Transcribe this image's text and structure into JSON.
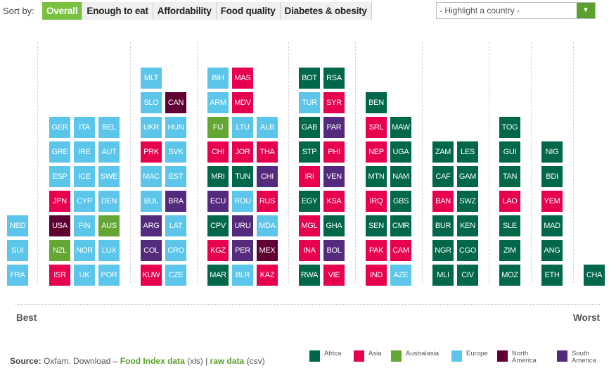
{
  "header": {
    "sort_label": "Sort by:",
    "tabs": [
      "Overall",
      "Enough to eat",
      "Affordability",
      "Food quality",
      "Diabetes & obesity"
    ],
    "active_tab": "Overall",
    "highlight_placeholder": "- Highlight a country -"
  },
  "colors": {
    "AF": "#00674a",
    "AS": "#e6004f",
    "AU": "#63a633",
    "EU": "#5bc6ea",
    "NA": "#600032",
    "SA": "#542a7c"
  },
  "chart_data": {
    "type": "table",
    "ordering": "bottom-to-top within column, groups from best to worst",
    "axis": {
      "left": "Best",
      "right": "Worst"
    },
    "groups": [
      [
        [
          [
            "FRA",
            "EU"
          ],
          [
            "SUI",
            "EU"
          ],
          [
            "NED",
            "EU"
          ]
        ]
      ],
      [
        [
          [
            "ISR",
            "AS"
          ],
          [
            "NZL",
            "AU"
          ],
          [
            "USA",
            "NA"
          ],
          [
            "JPN",
            "AS"
          ],
          [
            "ESP",
            "EU"
          ],
          [
            "GRE",
            "EU"
          ],
          [
            "GER",
            "EU"
          ]
        ],
        [
          [
            "UK",
            "EU"
          ],
          [
            "NOR",
            "EU"
          ],
          [
            "FIN",
            "EU"
          ],
          [
            "CYP",
            "EU"
          ],
          [
            "ICE",
            "EU"
          ],
          [
            "IRE",
            "EU"
          ],
          [
            "ITA",
            "EU"
          ]
        ],
        [
          [
            "POR",
            "EU"
          ],
          [
            "LUX",
            "EU"
          ],
          [
            "AUS",
            "AU"
          ],
          [
            "DEN",
            "EU"
          ],
          [
            "SWE",
            "EU"
          ],
          [
            "AUT",
            "EU"
          ],
          [
            "BEL",
            "EU"
          ]
        ]
      ],
      [
        [
          [
            "KUW",
            "AS"
          ],
          [
            "COL",
            "SA"
          ],
          [
            "ARG",
            "SA"
          ],
          [
            "BUL",
            "EU"
          ],
          [
            "MAC",
            "EU"
          ],
          [
            "PRK",
            "AS"
          ],
          [
            "UKR",
            "EU"
          ],
          [
            "SLO",
            "EU"
          ],
          [
            "MLT",
            "EU"
          ]
        ],
        [
          [
            "CZE",
            "EU"
          ],
          [
            "CRO",
            "EU"
          ],
          [
            "LAT",
            "EU"
          ],
          [
            "BRA",
            "SA"
          ],
          [
            "EST",
            "EU"
          ],
          [
            "SVK",
            "EU"
          ],
          [
            "HUN",
            "EU"
          ],
          [
            "CAN",
            "NA"
          ]
        ]
      ],
      [
        [
          [
            "MAR",
            "AF"
          ],
          [
            "KGZ",
            "AS"
          ],
          [
            "CPV",
            "AF"
          ],
          [
            "ECU",
            "SA"
          ],
          [
            "MRI",
            "AF"
          ],
          [
            "CHI",
            "AS"
          ],
          [
            "FIJ",
            "AU"
          ],
          [
            "ARM",
            "EU"
          ],
          [
            "BIH",
            "EU"
          ]
        ],
        [
          [
            "BLR",
            "EU"
          ],
          [
            "PER",
            "SA"
          ],
          [
            "URU",
            "SA"
          ],
          [
            "ROU",
            "EU"
          ],
          [
            "TUN",
            "AF"
          ],
          [
            "JOR",
            "AS"
          ],
          [
            "LTU",
            "EU"
          ],
          [
            "MDV",
            "AS"
          ],
          [
            "MAS",
            "AS"
          ]
        ],
        [
          [
            "KAZ",
            "AS"
          ],
          [
            "MEX",
            "NA"
          ],
          [
            "MDA",
            "EU"
          ],
          [
            "RUS",
            "AS"
          ],
          [
            "CHI",
            "SA"
          ],
          [
            "THA",
            "AS"
          ],
          [
            "ALB",
            "EU"
          ]
        ]
      ],
      [
        [
          [
            "RWA",
            "AF"
          ],
          [
            "INA",
            "AS"
          ],
          [
            "MGL",
            "AS"
          ],
          [
            "EGY",
            "AF"
          ],
          [
            "IRI",
            "AS"
          ],
          [
            "STP",
            "AF"
          ],
          [
            "GAB",
            "AF"
          ],
          [
            "TUR",
            "EU"
          ],
          [
            "BOT",
            "AF"
          ]
        ],
        [
          [
            "VIE",
            "AS"
          ],
          [
            "BOL",
            "SA"
          ],
          [
            "GHA",
            "AF"
          ],
          [
            "KSA",
            "AS"
          ],
          [
            "VEN",
            "SA"
          ],
          [
            "PHI",
            "AS"
          ],
          [
            "PAR",
            "SA"
          ],
          [
            "SYR",
            "AS"
          ],
          [
            "RSA",
            "AF"
          ]
        ]
      ],
      [
        [
          [
            "IND",
            "AS"
          ],
          [
            "PAK",
            "AS"
          ],
          [
            "SEN",
            "AF"
          ],
          [
            "IRQ",
            "AS"
          ],
          [
            "MTN",
            "AF"
          ],
          [
            "NEP",
            "AS"
          ],
          [
            "SRL",
            "AS"
          ],
          [
            "BEN",
            "AF"
          ]
        ],
        [
          [
            "AZE",
            "EU"
          ],
          [
            "CAM",
            "AS"
          ],
          [
            "CMR",
            "AF"
          ],
          [
            "GBS",
            "AF"
          ],
          [
            "NAM",
            "AF"
          ],
          [
            "UGA",
            "AF"
          ],
          [
            "MAW",
            "AF"
          ]
        ]
      ],
      [
        [
          [
            "MLI",
            "AF"
          ],
          [
            "NGR",
            "AF"
          ],
          [
            "BUR",
            "AF"
          ],
          [
            "BAN",
            "AS"
          ],
          [
            "CAF",
            "AF"
          ],
          [
            "ZAM",
            "AF"
          ]
        ],
        [
          [
            "CIV",
            "AF"
          ],
          [
            "CGO",
            "AF"
          ],
          [
            "KEN",
            "AF"
          ],
          [
            "SWZ",
            "AF"
          ],
          [
            "GAM",
            "AF"
          ],
          [
            "LES",
            "AF"
          ]
        ]
      ],
      [
        [
          [
            "MOZ",
            "AF"
          ],
          [
            "ZIM",
            "AF"
          ],
          [
            "SLE",
            "AF"
          ],
          [
            "LAO",
            "AS"
          ],
          [
            "TAN",
            "AF"
          ],
          [
            "GUI",
            "AF"
          ],
          [
            "TOG",
            "AF"
          ]
        ]
      ],
      [
        [
          [
            "ETH",
            "AF"
          ],
          [
            "ANG",
            "AF"
          ],
          [
            "MAD",
            "AF"
          ],
          [
            "YEM",
            "AS"
          ],
          [
            "BDI",
            "AF"
          ],
          [
            "NIG",
            "AF"
          ]
        ]
      ],
      [
        [
          [
            "CHA",
            "AF"
          ]
        ]
      ]
    ]
  },
  "legend": [
    {
      "key": "AF",
      "label": "Africa"
    },
    {
      "key": "AS",
      "label": "Asia"
    },
    {
      "key": "AU",
      "label": "Australasia"
    },
    {
      "key": "EU",
      "label": "Europe"
    },
    {
      "key": "NA",
      "label": "North America"
    },
    {
      "key": "SA",
      "label": "South America"
    }
  ],
  "footer": {
    "source_label": "Source:",
    "source_text": " Oxfam. Download – ",
    "link1": "Food Index data",
    "link1_suffix": " (xls) | ",
    "link2": "raw data",
    "link2_suffix": " (csv)"
  }
}
